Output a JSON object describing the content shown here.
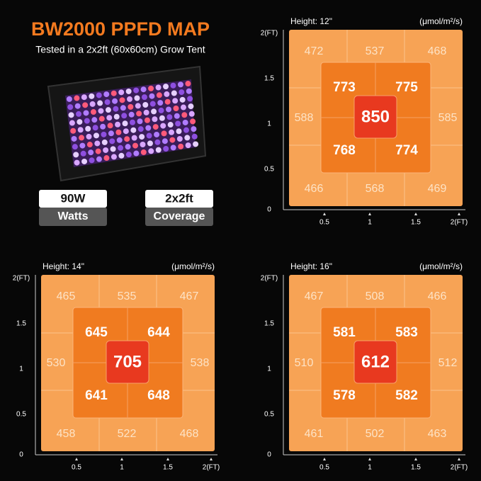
{
  "header": {
    "title": "BW2000 PPFD MAP",
    "subtitle": "Tested in a 2x2ft (60x60cm) Grow Tent"
  },
  "badges": [
    {
      "value": "90W",
      "label": "Watts"
    },
    {
      "value": "2x2ft",
      "label": "Coverage"
    }
  ],
  "panels": [
    {
      "height": "Height: 12\"",
      "unit": "(μmol/m²/s)",
      "y_axis": [
        "2(FT)",
        "1.5",
        "1",
        "0.5",
        "0"
      ],
      "x_axis": [
        "0.5",
        "1",
        "1.5",
        "2(FT)"
      ],
      "outer": [
        "472",
        "537",
        "468",
        "588",
        "585",
        "466",
        "568",
        "469"
      ],
      "inner": [
        "773",
        "775",
        "768",
        "774"
      ],
      "center": "850"
    },
    {
      "height": "Height: 14\"",
      "unit": "(μmol/m²/s)",
      "y_axis": [
        "2(FT)",
        "1.5",
        "1",
        "0.5",
        "0"
      ],
      "x_axis": [
        "0.5",
        "1",
        "1.5",
        "2(FT)"
      ],
      "outer": [
        "465",
        "535",
        "467",
        "530",
        "538",
        "458",
        "522",
        "468"
      ],
      "inner": [
        "645",
        "644",
        "641",
        "648"
      ],
      "center": "705"
    },
    {
      "height": "Height: 16\"",
      "unit": "(μmol/m²/s)",
      "y_axis": [
        "2(FT)",
        "1.5",
        "1",
        "0.5",
        "0"
      ],
      "x_axis": [
        "0.5",
        "1",
        "1.5",
        "2(FT)"
      ],
      "outer": [
        "467",
        "508",
        "466",
        "510",
        "512",
        "461",
        "502",
        "463"
      ],
      "inner": [
        "581",
        "583",
        "578",
        "582"
      ],
      "center": "612"
    }
  ]
}
